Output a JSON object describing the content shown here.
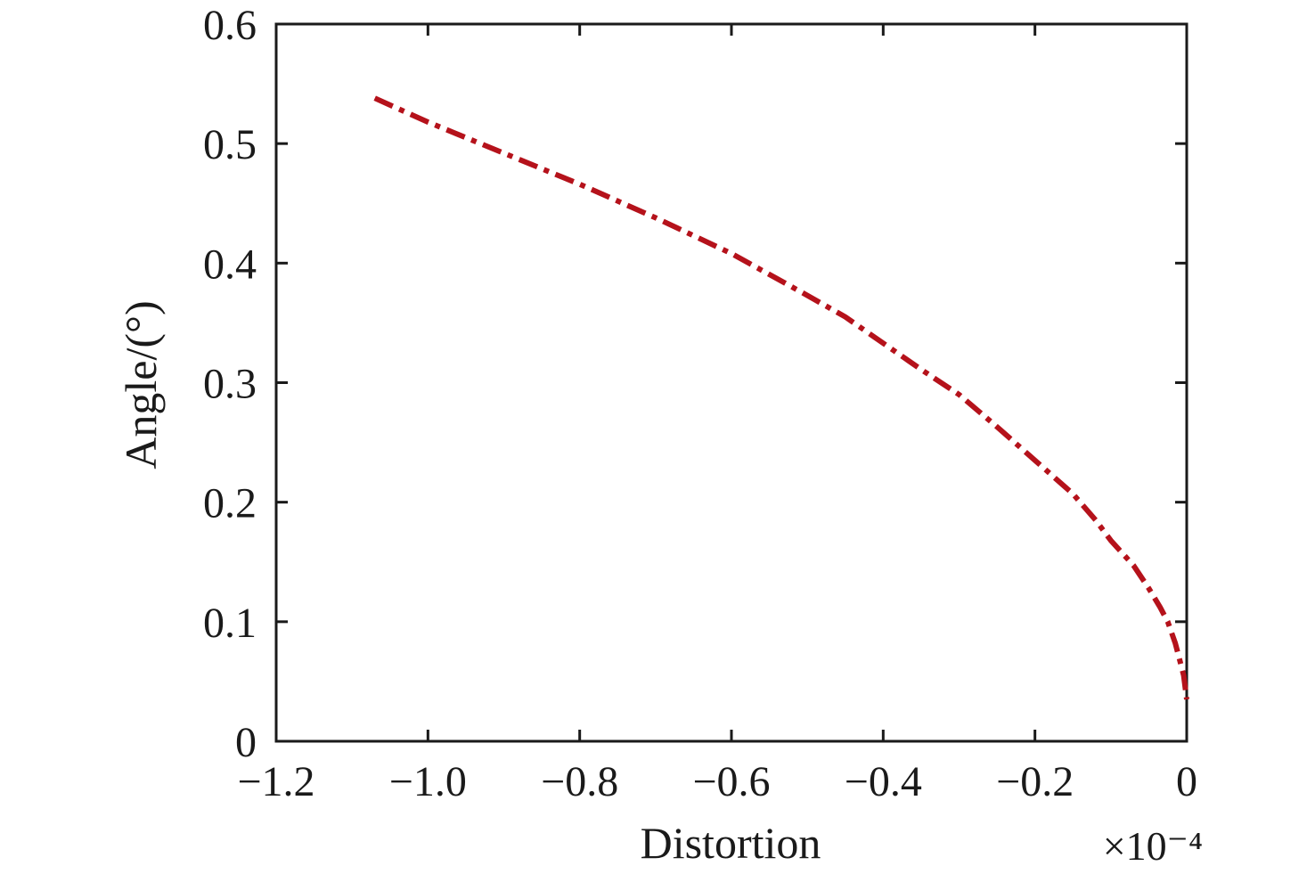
{
  "chart_data": {
    "type": "line",
    "xlabel": "Distortion",
    "ylabel": "Angle/(°)",
    "x_multiplier": "×10⁻⁴",
    "xlim": [
      -1.2,
      0
    ],
    "ylim": [
      0,
      0.6
    ],
    "x_ticks": [
      "−1.2",
      "−1.0",
      "−0.8",
      "−0.6",
      "−0.4",
      "−0.2",
      "0"
    ],
    "y_ticks": [
      "0",
      "0.1",
      "0.2",
      "0.3",
      "0.4",
      "0.5",
      "0.6"
    ],
    "grid": false,
    "line_style": "dash-dot",
    "series": [
      {
        "color": "#b5121b",
        "x": [
          -1.07,
          -1.0,
          -0.9,
          -0.8,
          -0.7,
          -0.6,
          -0.5,
          -0.45,
          -0.4,
          -0.35,
          -0.3,
          -0.25,
          -0.2,
          -0.15,
          -0.12,
          -0.1,
          -0.07,
          -0.05,
          -0.035,
          -0.025,
          -0.015,
          -0.008,
          -0.004,
          -0.002,
          0
        ],
        "y": [
          0.538,
          0.518,
          0.492,
          0.466,
          0.438,
          0.408,
          0.373,
          0.355,
          0.333,
          0.311,
          0.29,
          0.263,
          0.235,
          0.207,
          0.185,
          0.168,
          0.147,
          0.128,
          0.112,
          0.1,
          0.082,
          0.065,
          0.055,
          0.045,
          0.035
        ]
      }
    ]
  }
}
